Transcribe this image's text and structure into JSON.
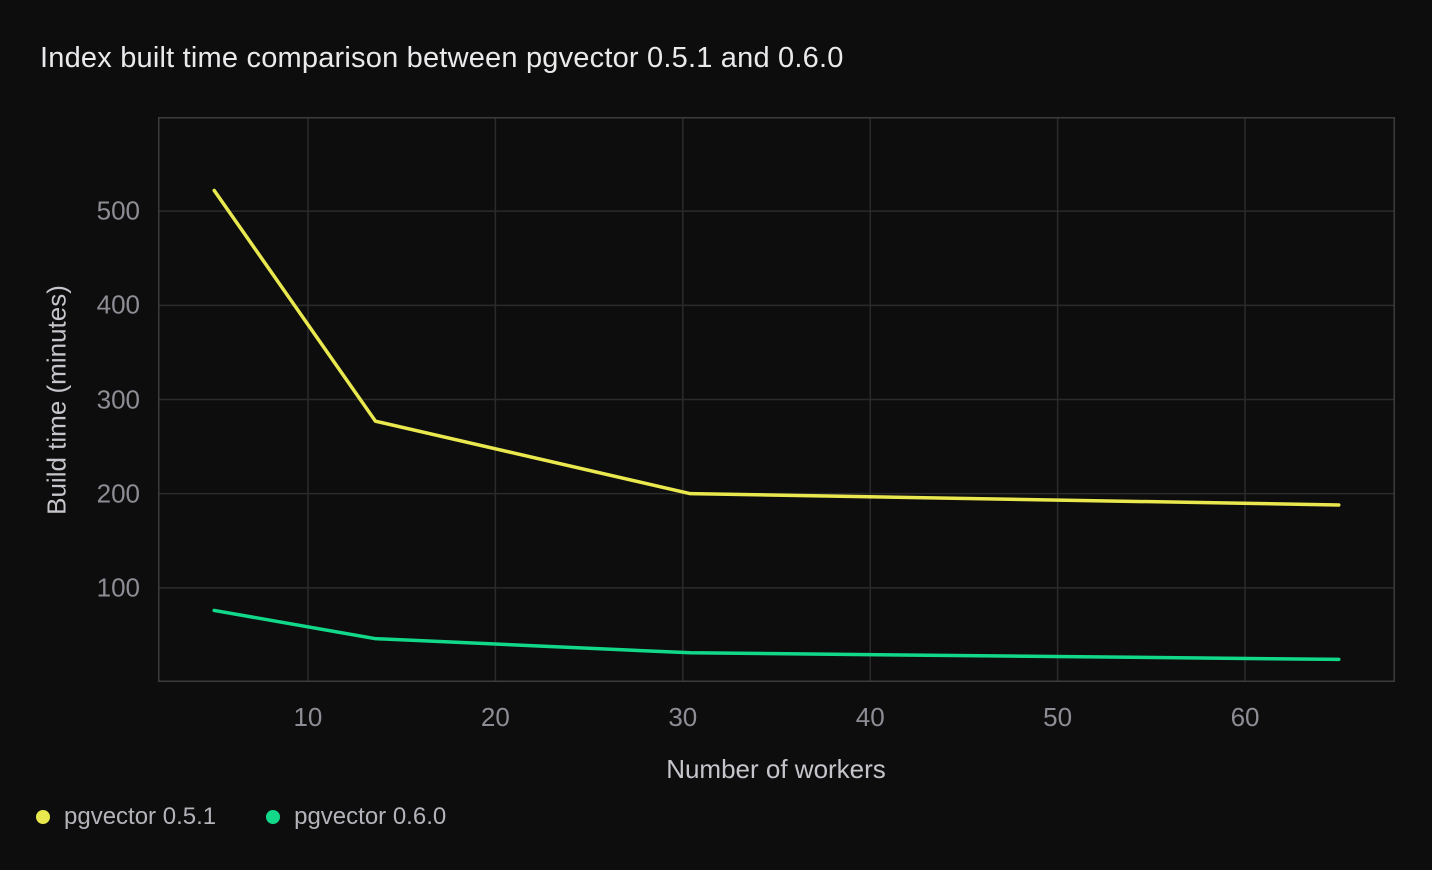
{
  "title": "Index built time comparison between pgvector 0.5.1 and 0.6.0",
  "colors": {
    "background": "#0d0d0d",
    "grid": "#2b2b2b",
    "plot_border": "#3c3c3c",
    "tick_label": "#8d8d95",
    "axis_title": "#c5c5cb",
    "title_text": "#eaeaed",
    "legend_text": "#b3b3ba",
    "series_051": "#e9e84e",
    "series_060": "#12d98a"
  },
  "chart_data": {
    "type": "line",
    "title": "Index built time comparison between pgvector 0.5.1 and 0.6.0",
    "xlabel": "Number of workers",
    "ylabel": "Build time (minutes)",
    "x": [
      5,
      13.6,
      30.4,
      65
    ],
    "series": [
      {
        "name": "pgvector 0.5.1",
        "color": "#e9e84e",
        "values": [
          522,
          277,
          200,
          188
        ]
      },
      {
        "name": "pgvector 0.6.0",
        "color": "#12d98a",
        "values": [
          76,
          46,
          31,
          24
        ]
      }
    ],
    "xlim": [
      2,
      68
    ],
    "ylim": [
      0,
      600
    ],
    "xticks": [
      10,
      20,
      30,
      40,
      50,
      60
    ],
    "yticks": [
      100,
      200,
      300,
      400,
      500
    ],
    "grid": true,
    "legend_position": "bottom-left",
    "line_width": 3.5
  },
  "legend": {
    "items": [
      {
        "label": "pgvector 0.5.1",
        "color": "#e9e84e"
      },
      {
        "label": "pgvector 0.6.0",
        "color": "#12d98a"
      }
    ]
  }
}
